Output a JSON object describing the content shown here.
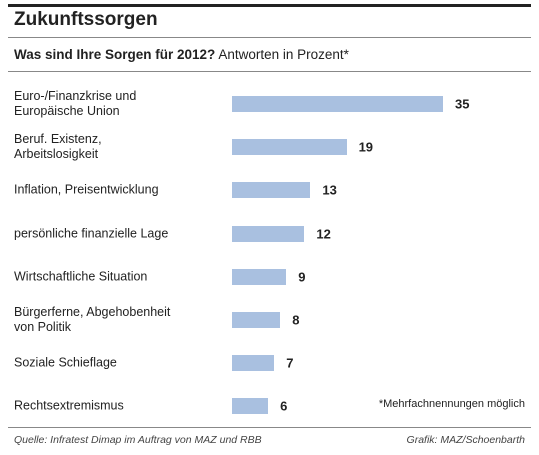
{
  "chart_data": {
    "type": "bar",
    "orientation": "horizontal",
    "title": "Zukunftssorgen",
    "subtitle": "Was sind Ihre Sorgen für 2012?",
    "unit_note": "Antworten in Prozent*",
    "categories": [
      "Euro-/Finanzkrise und\nEuropäische Union",
      "Beruf. Existenz,\nArbeitslosigkeit",
      "Inflation, Preisentwicklung",
      "persönliche finanzielle Lage",
      "Wirtschaftliche Situation",
      "Bürgerferne, Abgehobenheit\nvon Politik",
      "Soziale Schieflage",
      "Rechtsextremismus"
    ],
    "values": [
      35,
      19,
      13,
      12,
      9,
      8,
      7,
      6
    ],
    "color": "#a9c0e0",
    "footnote": "*Mehrfachnennungen möglich",
    "source": "Quelle: Infratest Dimap im Auftrag von MAZ und RBB",
    "credit": "Grafik: MAZ/Schoenbarth"
  }
}
